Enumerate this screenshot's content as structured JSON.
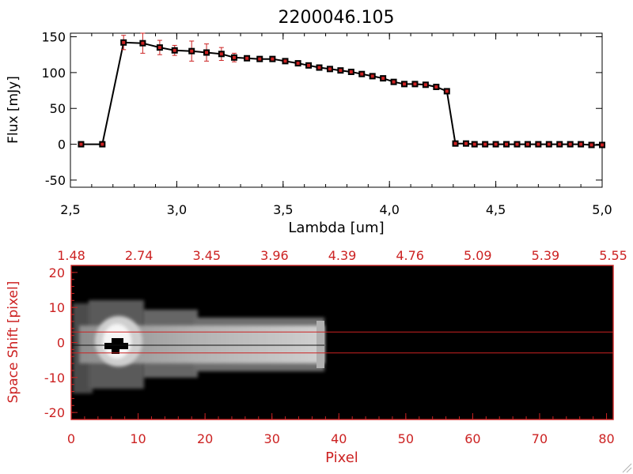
{
  "colors": {
    "data_red": "#cc2222",
    "axis_black": "#000000",
    "panel_red": "#cc2222",
    "image_bg": "#000000"
  },
  "chart_data": [
    {
      "type": "line",
      "title": "2200046.105",
      "xlabel": "Lambda [um]",
      "ylabel": "Flux [mJy]",
      "xlim": [
        2.5,
        5.0
      ],
      "ylim": [
        -60,
        155
      ],
      "xticks": [
        2.5,
        3.0,
        3.5,
        4.0,
        4.5,
        5.0
      ],
      "xtick_labels": [
        "2,5",
        "3,0",
        "3,5",
        "4,0",
        "4,5",
        "5,0"
      ],
      "yticks": [
        -50,
        0,
        50,
        100,
        150
      ],
      "ytick_labels": [
        "-50",
        "0",
        "50",
        "100",
        "150"
      ],
      "grid": false,
      "series": [
        {
          "x": [
            2.55,
            2.65,
            2.75,
            2.84,
            2.92,
            2.99,
            3.07,
            3.14,
            3.21,
            3.27,
            3.33,
            3.39,
            3.45,
            3.51,
            3.57,
            3.62,
            3.67,
            3.72,
            3.77,
            3.82,
            3.87,
            3.92,
            3.97,
            4.02,
            4.07,
            4.12,
            4.17,
            4.22,
            4.27,
            4.31,
            4.36,
            4.4,
            4.45,
            4.5,
            4.55,
            4.6,
            4.65,
            4.7,
            4.75,
            4.8,
            4.85,
            4.9,
            4.95,
            5.0
          ],
          "y": [
            0,
            0,
            142,
            141,
            135,
            131,
            130,
            128,
            126,
            121,
            120,
            119,
            119,
            116,
            113,
            110,
            107,
            105,
            103,
            101,
            98,
            95,
            92,
            87,
            84,
            84,
            83,
            80,
            74,
            1,
            1,
            0,
            0,
            0,
            0,
            0,
            0,
            0,
            0,
            0,
            0,
            0,
            -1,
            -1
          ],
          "yerr": [
            0,
            0,
            10,
            14,
            10,
            7,
            14,
            12,
            9,
            6,
            3,
            3,
            3,
            3,
            3,
            3,
            2,
            2,
            2,
            2,
            2,
            2,
            2,
            2,
            2,
            2,
            2,
            2,
            2,
            1,
            1,
            1,
            1,
            1,
            1,
            1,
            1,
            1,
            1,
            1,
            1,
            1,
            1,
            1
          ]
        }
      ]
    },
    {
      "type": "heatmap",
      "xlabel": "Pixel",
      "ylabel": "Space Shift [pixel]",
      "xlim": [
        0,
        81
      ],
      "ylim": [
        -22,
        22
      ],
      "xticks": [
        0,
        10,
        20,
        30,
        40,
        50,
        60,
        70,
        80
      ],
      "xtick_labels": [
        "0",
        "10",
        "20",
        "30",
        "40",
        "50",
        "60",
        "70",
        "80"
      ],
      "yticks": [
        -20,
        -10,
        0,
        10,
        20
      ],
      "ytick_labels": [
        "-20",
        "-10",
        "0",
        "10",
        "20"
      ],
      "top_axis_labels": [
        "1.48",
        "2.74",
        "3.45",
        "3.96",
        "4.39",
        "4.76",
        "5.09",
        "5.39",
        "5.55"
      ],
      "aperture_lines_y": [
        3,
        -3
      ],
      "bright_region_x": [
        0,
        38
      ]
    }
  ]
}
